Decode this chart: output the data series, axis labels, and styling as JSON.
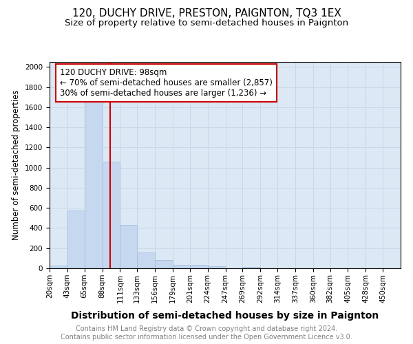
{
  "title": "120, DUCHY DRIVE, PRESTON, PAIGNTON, TQ3 1EX",
  "subtitle": "Size of property relative to semi-detached houses in Paignton",
  "xlabel": "Distribution of semi-detached houses by size in Paignton",
  "ylabel": "Number of semi-detached properties",
  "footer_line1": "Contains HM Land Registry data © Crown copyright and database right 2024.",
  "footer_line2": "Contains public sector information licensed under the Open Government Licence v3.0.",
  "bar_edges": [
    20,
    43,
    65,
    88,
    111,
    133,
    156,
    179,
    201,
    224,
    247,
    269,
    292,
    314,
    337,
    360,
    382,
    405,
    428,
    450,
    473
  ],
  "bar_heights": [
    25,
    575,
    1660,
    1060,
    430,
    155,
    85,
    35,
    35,
    20,
    0,
    15,
    0,
    0,
    0,
    0,
    0,
    0,
    0,
    0
  ],
  "bar_color": "#c5d8ef",
  "bar_edge_color": "#a0b8d8",
  "property_size": 98,
  "property_label": "120 DUCHY DRIVE: 98sqm",
  "pct_smaller": 70,
  "n_smaller": 2857,
  "pct_larger": 30,
  "n_larger": 1236,
  "vline_color": "#cc0000",
  "annotation_box_color": "#cc0000",
  "ylim": [
    0,
    2050
  ],
  "yticks": [
    0,
    200,
    400,
    600,
    800,
    1000,
    1200,
    1400,
    1600,
    1800,
    2000
  ],
  "grid_color": "#c8d8e8",
  "bg_color": "#dce8f4",
  "title_fontsize": 11,
  "subtitle_fontsize": 9.5,
  "xlabel_fontsize": 10,
  "ylabel_fontsize": 8.5,
  "tick_fontsize": 7.5,
  "footer_fontsize": 7,
  "annotation_fontsize": 8.5
}
